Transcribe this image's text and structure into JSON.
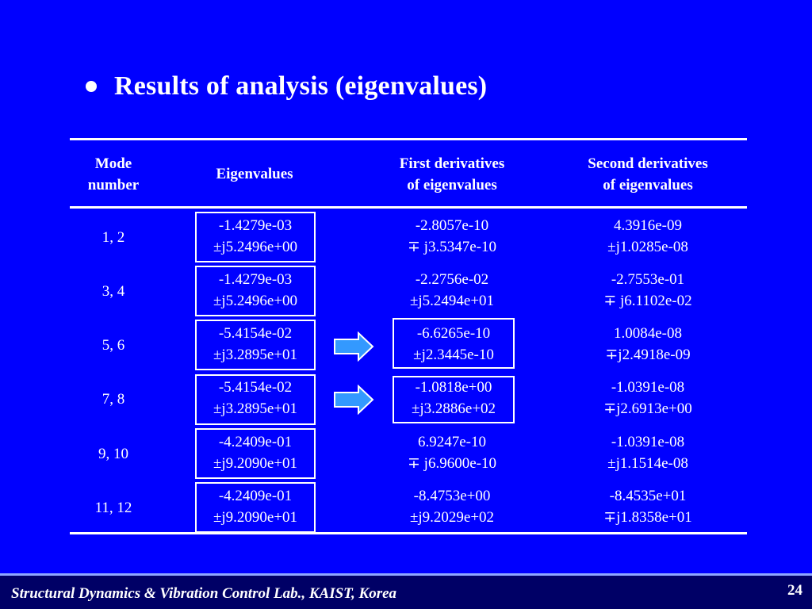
{
  "title": "Results of analysis (eigenvalues)",
  "table": {
    "headers": {
      "mode": [
        "Mode",
        "number"
      ],
      "eig": [
        "Eigenvalues"
      ],
      "first": [
        "First derivatives",
        "of eigenvalues"
      ],
      "second": [
        "Second derivatives",
        "of eigenvalues"
      ]
    },
    "rows": [
      {
        "mode": "1, 2",
        "eig": [
          "-1.4279e-03",
          "±j5.2496e+00"
        ],
        "first": [
          "-2.8057e-10",
          "∓ j3.5347e-10"
        ],
        "second": [
          "4.3916e-09",
          "±j1.0285e-08"
        ]
      },
      {
        "mode": "3, 4",
        "eig": [
          "-1.4279e-03",
          "±j5.2496e+00"
        ],
        "first": [
          "-2.2756e-02",
          "±j5.2494e+01"
        ],
        "second": [
          "-2.7553e-01",
          "∓ j6.1102e-02"
        ]
      },
      {
        "mode": "5, 6",
        "eig": [
          "-5.4154e-02",
          "±j3.2895e+01"
        ],
        "first": [
          "-6.6265e-10",
          "±j2.3445e-10"
        ],
        "second": [
          "1.0084e-08",
          "∓j2.4918e-09"
        ]
      },
      {
        "mode": "7, 8",
        "eig": [
          "-5.4154e-02",
          "±j3.2895e+01"
        ],
        "first": [
          "-1.0818e+00",
          "±j3.2886e+02"
        ],
        "second": [
          "-1.0391e-08",
          "∓j2.6913e+00"
        ]
      },
      {
        "mode": "9, 10",
        "eig": [
          "-4.2409e-01",
          "±j9.2090e+01"
        ],
        "first": [
          "6.9247e-10",
          "∓ j6.9600e-10"
        ],
        "second": [
          "-1.0391e-08",
          "±j1.1514e-08"
        ]
      },
      {
        "mode": "11, 12",
        "eig": [
          "-4.2409e-01",
          "±j9.2090e+01"
        ],
        "first": [
          "-8.4753e+00",
          "±j9.2029e+02"
        ],
        "second": [
          "-8.4535e+01",
          "∓j1.8358e+01"
        ]
      }
    ]
  },
  "footer": {
    "lab": "Structural Dynamics & Vibration Control Lab., KAIST, Korea",
    "page": "24"
  },
  "colors": {
    "background": "#0000ff",
    "footer_bar": "#000066",
    "arrow_fill": "#3399ff"
  }
}
